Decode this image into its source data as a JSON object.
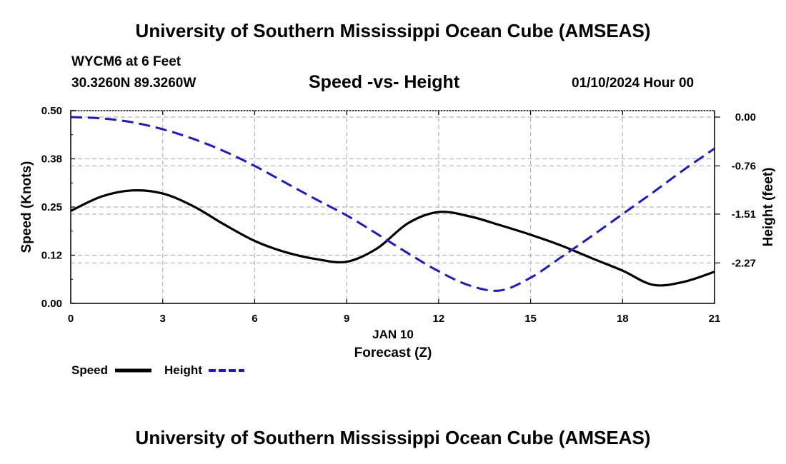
{
  "header": {
    "title": "University of Southern Mississippi Ocean Cube (AMSEAS)",
    "station": "WYCM6 at 6 Feet",
    "location": "30.3260N  89.3260W",
    "chart_title": "Speed -vs- Height",
    "date": "01/10/2024 Hour 00"
  },
  "footer": {
    "title": "University of Southern Mississippi Ocean Cube (AMSEAS)"
  },
  "legend": {
    "speed_label": "Speed",
    "height_label": "Height"
  },
  "colors": {
    "speed": "#000000",
    "height": "#1a1acc",
    "grid": "#b4b4b4"
  },
  "chart_data": {
    "type": "line",
    "title": "Speed -vs- Height",
    "xlabel": "Forecast (Z)",
    "xlabel_date": "JAN 10",
    "ylabel": "Speed (Knots)",
    "y2label": "Height (feet)",
    "xlim": [
      0,
      21
    ],
    "ylim": [
      0,
      0.5
    ],
    "y2lim": [
      -2.9,
      0.1
    ],
    "x_ticks": [
      0,
      3,
      6,
      9,
      12,
      15,
      18,
      21
    ],
    "x_tick_labels": [
      "0",
      "3",
      "6",
      "9",
      "12",
      "15",
      "18",
      "21"
    ],
    "y_ticks": [
      0,
      0.125,
      0.25,
      0.375,
      0.5
    ],
    "y_tick_labels": [
      "0.00",
      "0.12",
      "0.25",
      "0.38",
      "0.50"
    ],
    "y2_ticks": [
      0,
      -0.76,
      -1.51,
      -2.27
    ],
    "y2_tick_labels": [
      "0.00",
      "-0.76",
      "-1.51",
      "-2.27"
    ],
    "grid": true,
    "series": [
      {
        "name": "Speed",
        "axis": "left",
        "style": "solid",
        "x": [
          0,
          1,
          2,
          3,
          4,
          5,
          6,
          7,
          8,
          9,
          10,
          11,
          12,
          13,
          14,
          15,
          16,
          17,
          18,
          19,
          20,
          21
        ],
        "values": [
          0.24,
          0.277,
          0.293,
          0.285,
          0.252,
          0.205,
          0.162,
          0.133,
          0.115,
          0.108,
          0.143,
          0.208,
          0.237,
          0.226,
          0.203,
          0.178,
          0.15,
          0.117,
          0.085,
          0.048,
          0.056,
          0.082
        ]
      },
      {
        "name": "Height",
        "axis": "right",
        "style": "dashed",
        "x": [
          0,
          1,
          2,
          3,
          4,
          5,
          6,
          7,
          8,
          9,
          10,
          11,
          12,
          13,
          14,
          15,
          16,
          17,
          18,
          19,
          20,
          21
        ],
        "values": [
          0.0,
          -0.02,
          -0.08,
          -0.19,
          -0.34,
          -0.53,
          -0.76,
          -1.02,
          -1.28,
          -1.53,
          -1.82,
          -2.12,
          -2.4,
          -2.62,
          -2.7,
          -2.5,
          -2.18,
          -1.85,
          -1.51,
          -1.17,
          -0.82,
          -0.49
        ]
      }
    ]
  }
}
